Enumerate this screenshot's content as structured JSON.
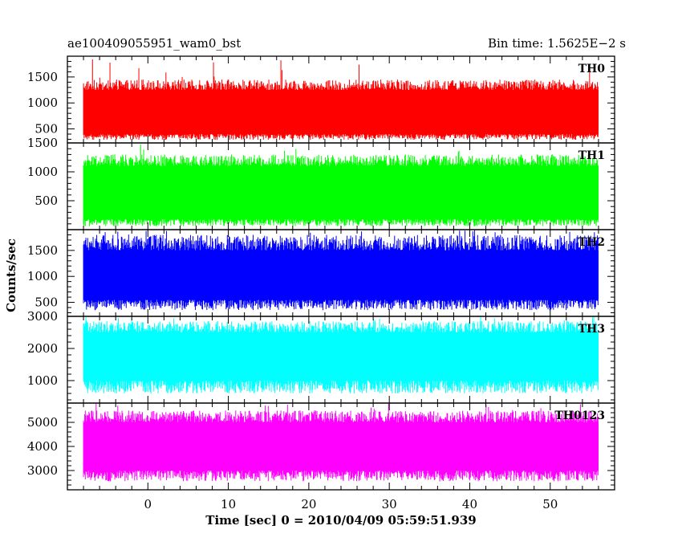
{
  "header": {
    "left": "ae100409055951_wam0_bst",
    "right": "Bin time: 1.5625E−2 s"
  },
  "chart_data": {
    "type": "line",
    "title": "ae100409055951_wam0_bst",
    "subtitle": "Bin time: 1.5625E−2 s",
    "xlabel": "Time [sec] 0 = 2010/04/09 05:59:51.939",
    "ylabel": "Counts/sec",
    "xlim": [
      -10,
      58
    ],
    "xticks": [
      0,
      10,
      20,
      30,
      40,
      50
    ],
    "x_data_range": [
      -8,
      56
    ],
    "bin_time": 0.015625,
    "grid": false,
    "panels": [
      {
        "name": "TH0",
        "color": "#ff0000",
        "ylim": [
          230,
          1900
        ],
        "yticks": [
          500,
          1000,
          1500
        ],
        "band_low": 400,
        "band_high": 1250,
        "typical_min": 290,
        "typical_max": 1450,
        "peak_max": 1900
      },
      {
        "name": "TH1",
        "color": "#00ff00",
        "ylim": [
          0,
          1500
        ],
        "yticks": [
          500,
          1000,
          1500
        ],
        "band_low": 180,
        "band_high": 1100,
        "typical_min": 60,
        "typical_max": 1300,
        "peak_max": 1500
      },
      {
        "name": "TH2",
        "color": "#0000ff",
        "ylim": [
          230,
          1900
        ],
        "yticks": [
          500,
          1000,
          1500
        ],
        "band_low": 550,
        "band_high": 1500,
        "typical_min": 350,
        "typical_max": 1800,
        "peak_max": 1900
      },
      {
        "name": "TH3",
        "color": "#00ffff",
        "ylim": [
          300,
          3000
        ],
        "yticks": [
          1000,
          2000,
          3000
        ],
        "band_low": 1000,
        "band_high": 2500,
        "typical_min": 600,
        "typical_max": 2850,
        "peak_max": 3000
      },
      {
        "name": "TH0123",
        "color": "#ff00ff",
        "ylim": [
          2200,
          5800
        ],
        "yticks": [
          3000,
          4000,
          5000
        ],
        "band_low": 3000,
        "band_high": 5000,
        "typical_min": 2550,
        "typical_max": 5500,
        "peak_max": 5800
      }
    ]
  }
}
